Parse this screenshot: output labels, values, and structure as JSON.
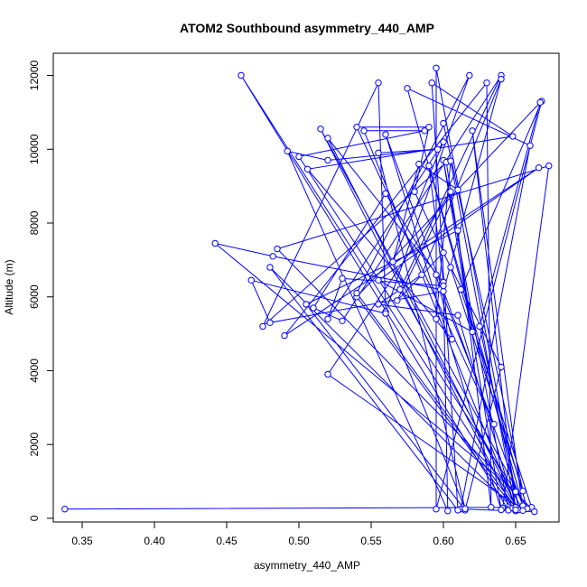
{
  "chart_data": {
    "type": "line",
    "title": "ATOM2 Southbound asymmetry_440_AMP",
    "xlabel": "asymmetry_440_AMP",
    "ylabel": "Altitude (m)",
    "xlim": [
      0.33,
      0.68
    ],
    "ylim": [
      -100,
      12600
    ],
    "x_ticks": [
      0.35,
      0.4,
      0.45,
      0.5,
      0.55,
      0.6,
      0.65
    ],
    "x_tick_labels": [
      "0.35",
      "0.40",
      "0.45",
      "0.50",
      "0.55",
      "0.60",
      "0.65"
    ],
    "y_ticks": [
      0,
      2000,
      4000,
      6000,
      8000,
      10000,
      12000
    ],
    "y_tick_labels": [
      "0",
      "2000",
      "4000",
      "6000",
      "8000",
      "10000",
      "12000"
    ],
    "grid": false,
    "legend": "none",
    "series": [
      {
        "color": "#0000ff",
        "marker": "open-circle",
        "points": [
          [
            0.338,
            250
          ],
          [
            0.661,
            300
          ],
          [
            0.612,
            6200
          ],
          [
            0.668,
            11300
          ],
          [
            0.595,
            250
          ],
          [
            0.595,
            12200
          ],
          [
            0.652,
            270
          ],
          [
            0.625,
            5200
          ],
          [
            0.667,
            11270
          ],
          [
            0.54,
            6000
          ],
          [
            0.65,
            200
          ],
          [
            0.62,
            10500
          ],
          [
            0.655,
            240
          ],
          [
            0.641,
            280
          ],
          [
            0.673,
            9550
          ],
          [
            0.485,
            7300
          ],
          [
            0.663,
            180
          ],
          [
            0.612,
            250
          ],
          [
            0.66,
            10100
          ],
          [
            0.575,
            11650
          ],
          [
            0.655,
            340
          ],
          [
            0.56,
            10400
          ],
          [
            0.64,
            230
          ],
          [
            0.6,
            9700
          ],
          [
            0.645,
            220
          ],
          [
            0.46,
            12000
          ],
          [
            0.652,
            230
          ],
          [
            0.52,
            10300
          ],
          [
            0.6,
            6400
          ],
          [
            0.59,
            9550
          ],
          [
            0.658,
            260
          ],
          [
            0.515,
            10550
          ],
          [
            0.648,
            280
          ],
          [
            0.48,
            6800
          ],
          [
            0.61,
            220
          ],
          [
            0.592,
            11800
          ],
          [
            0.648,
            10350
          ],
          [
            0.506,
            9460
          ],
          [
            0.606,
            4850
          ],
          [
            0.595,
            6600
          ],
          [
            0.56,
            8800
          ],
          [
            0.51,
            5700
          ],
          [
            0.53,
            5350
          ],
          [
            0.64,
            12000
          ],
          [
            0.57,
            6200
          ],
          [
            0.655,
            210
          ],
          [
            0.52,
            3900
          ],
          [
            0.605,
            8850
          ],
          [
            0.568,
            5900
          ],
          [
            0.6,
            7200
          ],
          [
            0.64,
            4100
          ],
          [
            0.615,
            220
          ],
          [
            0.505,
            5800
          ],
          [
            0.61,
            7800
          ],
          [
            0.633,
            300
          ],
          [
            0.63,
            11800
          ],
          [
            0.49,
            4950
          ],
          [
            0.666,
            9500
          ],
          [
            0.555,
            6450
          ],
          [
            0.62,
            5050
          ],
          [
            0.602,
            9650
          ],
          [
            0.475,
            5200
          ],
          [
            0.555,
            11800
          ],
          [
            0.56,
            5600
          ],
          [
            0.618,
            12000
          ],
          [
            0.54,
            6100
          ],
          [
            0.65,
            300
          ],
          [
            0.545,
            10500
          ],
          [
            0.587,
            10500
          ],
          [
            0.5,
            9800
          ],
          [
            0.65,
            720
          ],
          [
            0.442,
            7450
          ],
          [
            0.482,
            7100
          ],
          [
            0.598,
            6200
          ],
          [
            0.635,
            2550
          ],
          [
            0.54,
            10600
          ],
          [
            0.59,
            10600
          ],
          [
            0.58,
            8850
          ],
          [
            0.605,
            6800
          ],
          [
            0.655,
            740
          ],
          [
            0.6,
            10700
          ],
          [
            0.61,
            8900
          ],
          [
            0.583,
            9600
          ],
          [
            0.565,
            6950
          ],
          [
            0.6,
            10200
          ],
          [
            0.52,
            5400
          ],
          [
            0.53,
            6500
          ],
          [
            0.6,
            6300
          ],
          [
            0.603,
            200
          ],
          [
            0.492,
            9950
          ],
          [
            0.52,
            9700
          ],
          [
            0.596,
            10000
          ],
          [
            0.555,
            9900
          ],
          [
            0.615,
            260
          ],
          [
            0.56,
            5550
          ],
          [
            0.467,
            6450
          ],
          [
            0.48,
            5300
          ],
          [
            0.6,
            6150
          ],
          [
            0.64,
            11900
          ],
          [
            0.585,
            6600
          ],
          [
            0.555,
            5800
          ],
          [
            0.61,
            5500
          ],
          [
            0.65,
            230
          ],
          [
            0.605,
            9680
          ],
          [
            0.595,
            5400
          ]
        ]
      }
    ]
  }
}
